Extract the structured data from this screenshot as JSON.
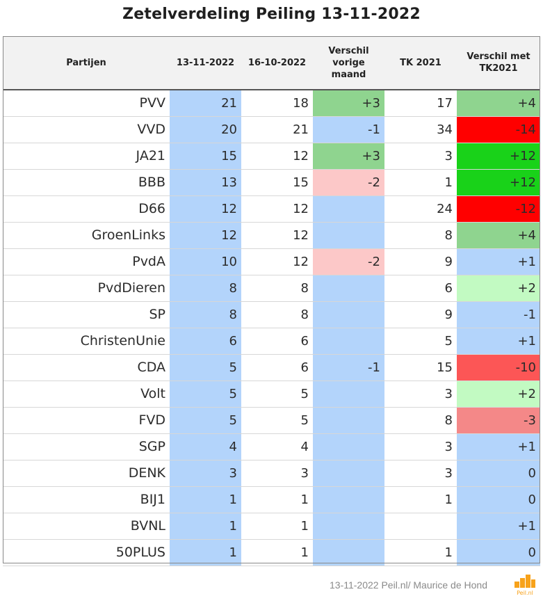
{
  "title": "Zetelverdeling Peiling 13-11-2022",
  "headers": [
    "Partijen",
    "13-11-2022",
    "16-10-2022",
    "Verschil vorige maand",
    "TK 2021",
    "Verschil met TK2021"
  ],
  "rows": [
    {
      "party": "PVV",
      "now": "21",
      "prev": "18",
      "diff": "+3",
      "tk": "17",
      "tkdiff": "+4"
    },
    {
      "party": "VVD",
      "now": "20",
      "prev": "21",
      "diff": "-1",
      "tk": "34",
      "tkdiff": "-14"
    },
    {
      "party": "JA21",
      "now": "15",
      "prev": "12",
      "diff": "+3",
      "tk": "3",
      "tkdiff": "+12"
    },
    {
      "party": "BBB",
      "now": "13",
      "prev": "15",
      "diff": "-2",
      "tk": "1",
      "tkdiff": "+12"
    },
    {
      "party": "D66",
      "now": "12",
      "prev": "12",
      "diff": "",
      "tk": "24",
      "tkdiff": "-12"
    },
    {
      "party": "GroenLinks",
      "now": "12",
      "prev": "12",
      "diff": "",
      "tk": "8",
      "tkdiff": "+4"
    },
    {
      "party": "PvdA",
      "now": "10",
      "prev": "12",
      "diff": "-2",
      "tk": "9",
      "tkdiff": "+1"
    },
    {
      "party": "PvdDieren",
      "now": "8",
      "prev": "8",
      "diff": "",
      "tk": "6",
      "tkdiff": "+2"
    },
    {
      "party": "SP",
      "now": "8",
      "prev": "8",
      "diff": "",
      "tk": "9",
      "tkdiff": "-1"
    },
    {
      "party": "ChristenUnie",
      "now": "6",
      "prev": "6",
      "diff": "",
      "tk": "5",
      "tkdiff": "+1"
    },
    {
      "party": "CDA",
      "now": "5",
      "prev": "6",
      "diff": "-1",
      "tk": "15",
      "tkdiff": "-10"
    },
    {
      "party": "Volt",
      "now": "5",
      "prev": "5",
      "diff": "",
      "tk": "3",
      "tkdiff": "+2"
    },
    {
      "party": "FVD",
      "now": "5",
      "prev": "5",
      "diff": "",
      "tk": "8",
      "tkdiff": "-3"
    },
    {
      "party": "SGP",
      "now": "4",
      "prev": "4",
      "diff": "",
      "tk": "3",
      "tkdiff": "+1"
    },
    {
      "party": "DENK",
      "now": "3",
      "prev": "3",
      "diff": "",
      "tk": "3",
      "tkdiff": "0"
    },
    {
      "party": "BIJ1",
      "now": "1",
      "prev": "1",
      "diff": "",
      "tk": "1",
      "tkdiff": "0"
    },
    {
      "party": "BVNL",
      "now": "1",
      "prev": "1",
      "diff": "",
      "tk": "",
      "tkdiff": "+1"
    },
    {
      "party": "50PLUS",
      "now": "1",
      "prev": "1",
      "diff": "",
      "tk": "1",
      "tkdiff": "0"
    }
  ],
  "colors": {
    "now_column": "#b3d4fb",
    "neutral": "#b3d4fb",
    "plus_medium": "#8fd48f",
    "plus_strong": "#19d219",
    "plus_light": "#c2fac2",
    "minus_light": "#fcc8c8",
    "minus_medium": "#f48888",
    "minus_strong": "#fc5656",
    "minus_max": "#ff0000"
  },
  "footer": "13-11-2022 Peil.nl/ Maurice de Hond",
  "logo_text": "Peil.nl"
}
